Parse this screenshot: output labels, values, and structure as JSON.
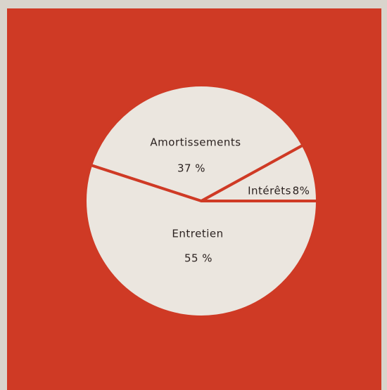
{
  "chart_data": {
    "type": "pie",
    "categories": [
      "Intérêts",
      "Amortissements",
      "Entretien"
    ],
    "values": [
      8,
      37,
      55
    ],
    "value_labels": [
      "8%",
      "37 %",
      "55 %"
    ],
    "colors": [
      "#ebe6df",
      "#ebe6df",
      "#ebe6df"
    ],
    "background": "#cf3a25"
  }
}
